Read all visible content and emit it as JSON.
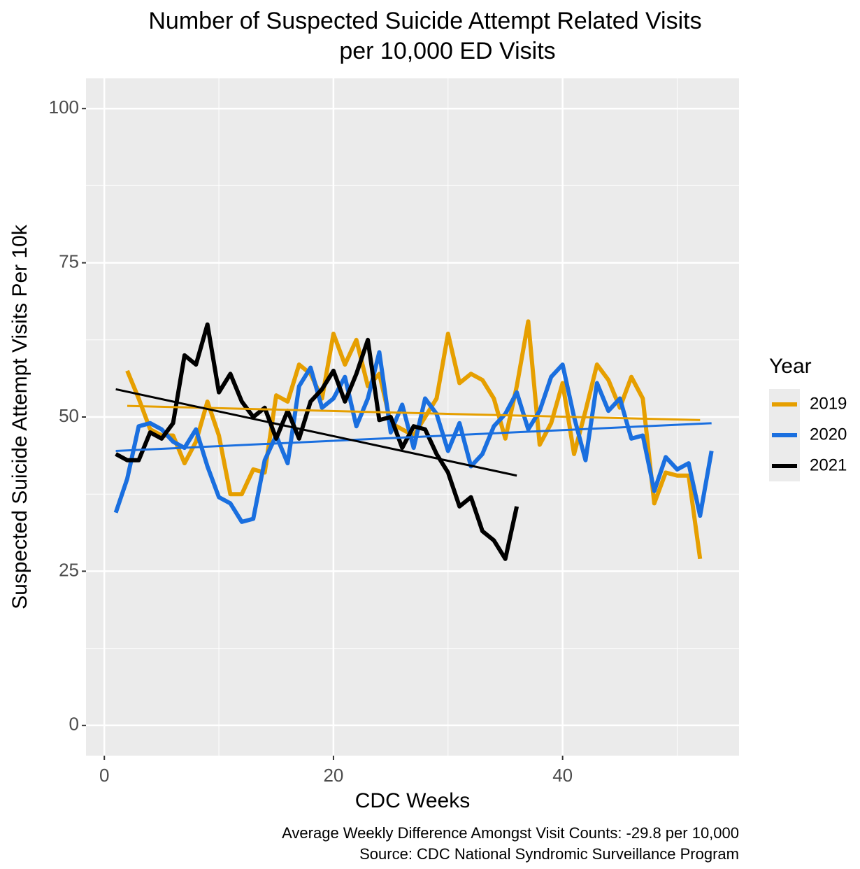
{
  "chart_data": {
    "type": "line",
    "title": [
      "Number of Suspected Suicide Attempt Related Visits",
      "per 10,000 ED Visits"
    ],
    "x_label": "CDC Weeks",
    "y_label": "Suspected Suicide Attempt Visits Per 10k",
    "legend_title": "Year",
    "legend_position": "right",
    "caption": [
      "Average Weekly Difference Amongst Visit Counts: -29.8 per 10,000",
      "Source: CDC National Syndromic Surveillance Program"
    ],
    "grid": true,
    "xlim": [
      -1.6,
      55.4
    ],
    "xticks": [
      0,
      20,
      40
    ],
    "ylim": [
      -4.9,
      104.9
    ],
    "yticks": [
      0,
      25,
      50,
      75,
      100
    ],
    "x": [
      1,
      2,
      3,
      4,
      5,
      6,
      7,
      8,
      9,
      10,
      11,
      12,
      13,
      14,
      15,
      16,
      17,
      18,
      19,
      20,
      21,
      22,
      23,
      24,
      25,
      26,
      27,
      28,
      29,
      30,
      31,
      32,
      33,
      34,
      35,
      36,
      37,
      38,
      39,
      40,
      41,
      42,
      43,
      44,
      45,
      46,
      47,
      48,
      49,
      50,
      51,
      52,
      53
    ],
    "series": [
      {
        "name": "2019",
        "color": "#E69F00",
        "values": [
          null,
          57.5,
          53,
          48,
          47,
          47,
          42.5,
          46,
          52.5,
          47,
          37.5,
          37.5,
          41.5,
          41,
          53.5,
          52.5,
          58.5,
          57,
          53,
          63.5,
          58.5,
          62.5,
          55,
          57,
          49,
          48,
          47,
          50,
          53,
          63.5,
          55.5,
          57,
          56,
          53,
          46.5,
          55,
          65.5,
          45.5,
          49,
          55.5,
          44,
          51,
          58.5,
          56,
          51.5,
          56.5,
          53,
          36,
          41,
          40.5,
          40.5,
          27,
          null
        ],
        "trend": {
          "x": [
            2,
            52
          ],
          "values": [
            51.8,
            49.5
          ]
        }
      },
      {
        "name": "2020",
        "color": "#1A6FDF",
        "values": [
          34.5,
          40,
          48.5,
          49,
          48,
          46,
          45,
          48,
          42,
          37,
          36,
          33,
          33.5,
          43,
          47,
          42.5,
          55,
          58,
          51.5,
          53,
          56.5,
          48.5,
          53,
          60.5,
          47.5,
          52,
          45,
          53,
          50.5,
          44.5,
          49,
          42,
          44,
          48.5,
          50.5,
          54,
          48,
          51,
          56.5,
          58.5,
          50,
          43,
          55.5,
          51,
          53,
          46.5,
          47,
          38,
          43.5,
          41.5,
          42.5,
          34,
          44.5
        ],
        "trend": {
          "x": [
            1,
            53
          ],
          "values": [
            44.5,
            49
          ]
        }
      },
      {
        "name": "2021",
        "color": "#000000",
        "values": [
          44,
          43,
          43,
          47.5,
          46.5,
          49,
          60,
          58.5,
          65,
          54,
          57,
          52.5,
          50,
          51.5,
          46.5,
          51,
          46.5,
          52.5,
          54.5,
          57.5,
          52.5,
          57,
          62.5,
          49.5,
          50,
          45,
          48.5,
          48,
          44,
          41,
          35.5,
          37,
          31.5,
          30,
          27,
          35.5,
          null,
          null,
          null,
          null,
          null,
          null,
          null,
          null,
          null,
          null,
          null,
          null,
          null,
          null,
          null,
          null,
          null
        ],
        "trend": {
          "x": [
            1,
            36
          ],
          "values": [
            54.5,
            40.5
          ]
        }
      }
    ]
  }
}
